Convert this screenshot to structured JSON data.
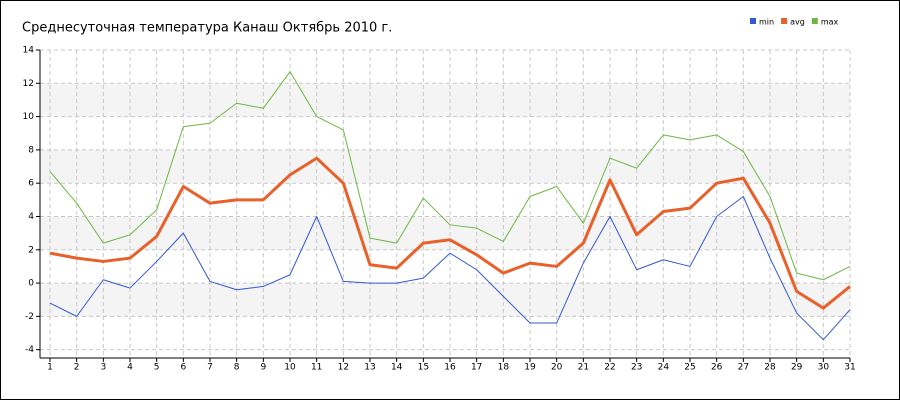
{
  "chart_data": {
    "type": "line",
    "title": "Среднесуточная температура Канаш  Октябрь 2010 г.",
    "x": [
      1,
      2,
      3,
      4,
      5,
      6,
      7,
      8,
      9,
      10,
      11,
      12,
      13,
      14,
      15,
      16,
      17,
      18,
      19,
      20,
      21,
      22,
      23,
      24,
      25,
      26,
      27,
      28,
      29,
      30,
      31
    ],
    "series": [
      {
        "name": "min",
        "color": "#3358d4",
        "values": [
          -1.2,
          -2.0,
          0.2,
          -0.3,
          1.3,
          3.0,
          0.1,
          -0.4,
          -0.2,
          0.5,
          4.0,
          0.1,
          0.0,
          0.0,
          0.3,
          1.8,
          0.8,
          -0.8,
          -2.4,
          -2.4,
          1.2,
          4.0,
          0.8,
          1.4,
          1.0,
          4.0,
          5.2,
          1.5,
          -1.8,
          -3.4,
          -1.6
        ]
      },
      {
        "name": "avg",
        "color": "#e8602a",
        "values": [
          1.8,
          1.5,
          1.3,
          1.5,
          2.8,
          5.8,
          4.8,
          5.0,
          5.0,
          6.5,
          7.5,
          6.0,
          1.1,
          0.9,
          2.4,
          2.6,
          1.7,
          0.6,
          1.2,
          1.0,
          2.4,
          6.2,
          2.9,
          4.3,
          4.5,
          6.0,
          6.3,
          3.6,
          -0.5,
          -1.5,
          -0.2
        ]
      },
      {
        "name": "max",
        "color": "#6cb844",
        "values": [
          6.7,
          4.8,
          2.4,
          2.9,
          4.4,
          9.4,
          9.6,
          10.8,
          10.5,
          12.7,
          10.0,
          9.2,
          2.7,
          2.4,
          5.1,
          3.5,
          3.3,
          2.5,
          5.2,
          5.8,
          3.6,
          7.5,
          6.9,
          8.9,
          8.6,
          8.9,
          7.9,
          5.2,
          0.6,
          0.2,
          1.0
        ]
      }
    ],
    "xlim": [
      1,
      31
    ],
    "xticks": [
      1,
      2,
      3,
      4,
      5,
      6,
      7,
      8,
      9,
      10,
      11,
      12,
      13,
      14,
      15,
      16,
      17,
      18,
      19,
      20,
      21,
      22,
      23,
      24,
      25,
      26,
      27,
      28,
      29,
      30,
      31
    ],
    "ylim": [
      -4.5,
      14
    ],
    "yticks": [
      -4,
      -2,
      0,
      2,
      4,
      6,
      8,
      10,
      12,
      14
    ],
    "grid": true,
    "legend": "top-right"
  }
}
